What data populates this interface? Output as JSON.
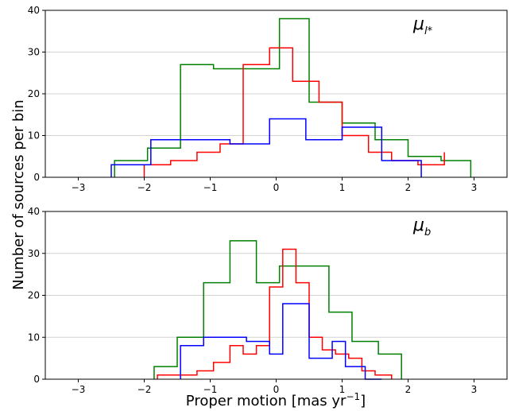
{
  "figure": {
    "xlabel": "Proper motion [mas yr",
    "xlabel_sup": "−1",
    "xlabel_end": "]",
    "ylabel": "Number of sources per bin"
  },
  "colors": {
    "red": "#ff0000",
    "green": "#008000",
    "blue": "#0000ff",
    "grid": "#d3d3d3",
    "axis": "#000000"
  },
  "chart_data": [
    {
      "type": "histogram",
      "panel": "top",
      "annotation_base": "μ",
      "annotation_sub": "l*",
      "xlim": [
        -3.5,
        3.5
      ],
      "ylim": [
        0,
        40
      ],
      "xticks": [
        -3,
        -2,
        -1,
        0,
        1,
        2,
        3
      ],
      "xtick_labels": [
        "−3",
        "−2",
        "−1",
        "0",
        "1",
        "2",
        "3"
      ],
      "yticks": [
        0,
        10,
        20,
        30,
        40
      ],
      "ytick_labels": [
        "0",
        "10",
        "20",
        "30",
        "40"
      ],
      "grid": "horizontal",
      "series": [
        {
          "color": "green",
          "edges": [
            -2.45,
            -1.95,
            -1.45,
            -0.95,
            -0.45,
            0.05,
            0.5,
            1.0,
            1.5,
            2.0,
            2.5,
            2.95
          ],
          "values": [
            4,
            7,
            27,
            26,
            26,
            38,
            18,
            13,
            9,
            5,
            4
          ]
        },
        {
          "color": "red",
          "edges": [
            -2.0,
            -1.6,
            -1.2,
            -0.85,
            -0.5,
            -0.1,
            0.25,
            0.65,
            1.0,
            1.4,
            1.75,
            2.15,
            2.55
          ],
          "values": [
            3,
            4,
            6,
            8,
            27,
            31,
            23,
            18,
            10,
            6,
            4,
            3,
            6
          ]
        },
        {
          "color": "blue",
          "edges": [
            -2.5,
            -1.9,
            -0.7,
            -0.1,
            0.45,
            1.0,
            1.6,
            2.2
          ],
          "values": [
            3,
            9,
            8,
            14,
            9,
            12,
            4
          ]
        }
      ]
    },
    {
      "type": "histogram",
      "panel": "bottom",
      "annotation_base": "μ",
      "annotation_sub": "b",
      "xlim": [
        -3.5,
        3.5
      ],
      "ylim": [
        0,
        40
      ],
      "xticks": [
        -3,
        -2,
        -1,
        0,
        1,
        2,
        3
      ],
      "xtick_labels": [
        "−3",
        "−2",
        "−1",
        "0",
        "1",
        "2",
        "3"
      ],
      "yticks": [
        0,
        10,
        20,
        30,
        40
      ],
      "ytick_labels": [
        "0",
        "10",
        "20",
        "30",
        "40"
      ],
      "grid": "horizontal",
      "series": [
        {
          "color": "green",
          "edges": [
            -1.85,
            -1.5,
            -1.1,
            -0.7,
            -0.3,
            0.05,
            0.8,
            1.15,
            1.55,
            1.9
          ],
          "values": [
            3,
            10,
            23,
            33,
            23,
            27,
            16,
            9,
            6
          ]
        },
        {
          "color": "red",
          "edges": [
            -1.8,
            -1.2,
            -0.95,
            -0.7,
            -0.5,
            -0.3,
            -0.1,
            0.1,
            0.3,
            0.5,
            0.7,
            0.9,
            1.1,
            1.3,
            1.5,
            1.75
          ],
          "values": [
            1,
            2,
            4,
            8,
            6,
            8,
            22,
            31,
            23,
            10,
            7,
            6,
            5,
            2,
            1
          ]
        },
        {
          "color": "blue",
          "edges": [
            -1.45,
            -1.1,
            -0.45,
            -0.1,
            0.1,
            0.5,
            0.85,
            1.05,
            1.35,
            1.6
          ],
          "values": [
            8,
            10,
            9,
            6,
            18,
            5,
            9,
            3,
            0
          ]
        }
      ]
    }
  ]
}
